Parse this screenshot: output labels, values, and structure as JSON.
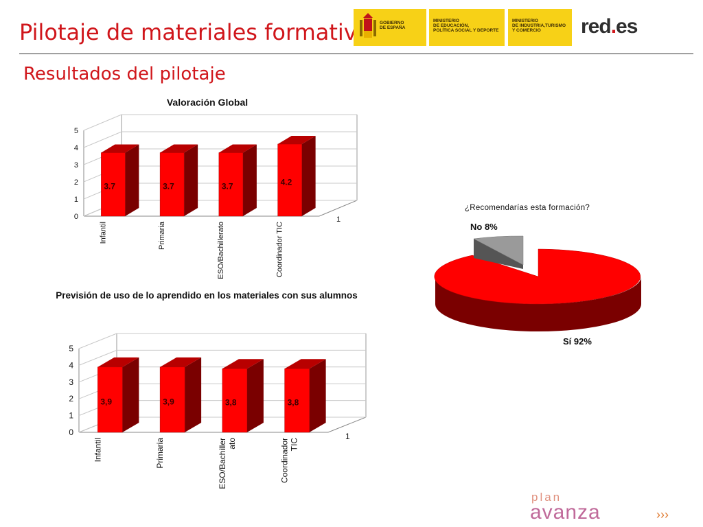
{
  "slide": {
    "title": "Pilotaje de materiales formativos",
    "subtitle": "Resultados del pilotaje"
  },
  "logos": {
    "gobierno": "GOBIERNO\nDE ESPAÑA",
    "educacion": "MINISTERIO\nDE EDUCACIÓN,\nPOLÍTICA SOCIAL Y DEPORTE",
    "industria": "MINISTERIO\nDE INDUSTRIA,TURISMO\nY COMERCIO",
    "reds_main": "red",
    "reds_dot": ".",
    "reds_tail": "es",
    "plan_small": "plan",
    "plan_big": "avanza",
    "plan_marks": "›››"
  },
  "colors": {
    "accent": "#d0161b",
    "bar_front": "#ff0000",
    "bar_side": "#7a0000",
    "bar_top": "#b80000",
    "logo_yellow": "#f7d117",
    "pie_no": "#9a9a9a"
  },
  "chart_data": [
    {
      "type": "bar",
      "title": "Valoración Global",
      "categories": [
        "Infantil",
        "Primaria",
        "ESO/Bachillerato",
        "Coordinador TIC"
      ],
      "values": [
        3.7,
        3.7,
        3.7,
        4.2
      ],
      "data_labels": [
        "3.7",
        "3.7",
        "3.7",
        "4.2"
      ],
      "yticks": [
        "0",
        "1",
        "2",
        "3",
        "4",
        "5"
      ],
      "ylim": [
        0,
        5
      ],
      "depth_label": "1",
      "grid": true,
      "style": "3d"
    },
    {
      "type": "bar",
      "title": "Previsión de uso de lo aprendido en los materiales con sus alumnos",
      "categories": [
        "Infantil",
        "Primaria",
        "ESO/Bachiller ato",
        "Coordinador TIC"
      ],
      "category_lines": [
        [
          "Infantil"
        ],
        [
          "Primaria"
        ],
        [
          "ESO/Bachiller",
          "ato"
        ],
        [
          "Coordinador",
          "TIC"
        ]
      ],
      "values": [
        3.9,
        3.9,
        3.8,
        3.8
      ],
      "data_labels": [
        "3,9",
        "3,9",
        "3,8",
        "3,8"
      ],
      "yticks": [
        "0",
        "1",
        "2",
        "3",
        "4",
        "5"
      ],
      "ylim": [
        0,
        5
      ],
      "depth_label": "1",
      "grid": true,
      "style": "3d"
    },
    {
      "type": "pie",
      "title": "¿Recomendarías esta formación?",
      "slices": [
        {
          "label": "No 8%",
          "value": 8
        },
        {
          "label": "Sí 92%",
          "value": 92
        }
      ],
      "style": "3d-exploded"
    }
  ]
}
